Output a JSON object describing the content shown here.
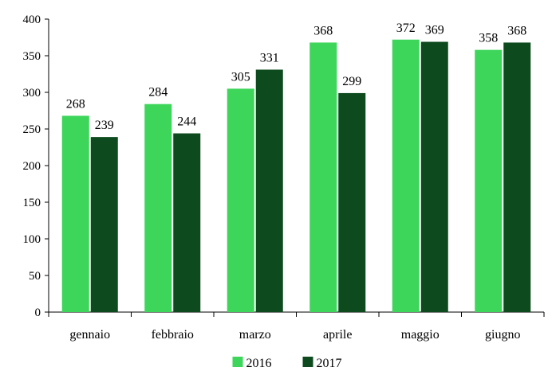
{
  "chart_data": {
    "type": "bar",
    "categories": [
      "gennaio",
      "febbraio",
      "marzo",
      "aprile",
      "maggio",
      "giugno"
    ],
    "series": [
      {
        "name": "2016",
        "values": [
          268,
          284,
          305,
          368,
          372,
          358
        ],
        "color": "#3dd65b"
      },
      {
        "name": "2017",
        "values": [
          239,
          244,
          331,
          299,
          369,
          368
        ],
        "color": "#0d4a1e"
      }
    ],
    "ylim": [
      0,
      400
    ],
    "yticks": [
      0,
      50,
      100,
      150,
      200,
      250,
      300,
      350,
      400
    ],
    "grid": false,
    "legend_position": "bottom",
    "data_labels": true
  }
}
